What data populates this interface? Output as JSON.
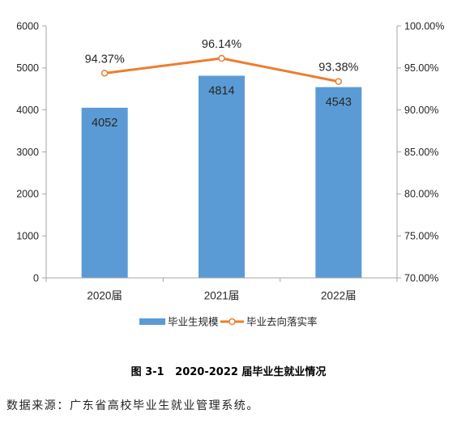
{
  "chart_data": {
    "type": "bar",
    "title": "图 3-1   2020-2022 届毕业生就业情况",
    "categories": [
      "2020届",
      "2021届",
      "2022届"
    ],
    "series": [
      {
        "name": "毕业生规模",
        "type": "bar",
        "axis": "left",
        "values": [
          4052,
          4814,
          4543
        ],
        "labels": [
          "4052",
          "4814",
          "4543"
        ],
        "color": "#5B9BD5"
      },
      {
        "name": "毕业去向落实率",
        "type": "line",
        "axis": "right",
        "values": [
          94.37,
          96.14,
          93.38
        ],
        "labels": [
          "94.37%",
          "96.14%",
          "93.38%"
        ],
        "color": "#ED7D31",
        "marker": "circle"
      }
    ],
    "y_axis_left": {
      "range": [
        0,
        6000
      ],
      "ticks": [
        0,
        1000,
        2000,
        3000,
        4000,
        5000,
        6000
      ],
      "tick_labels": [
        "0",
        "1000",
        "2000",
        "3000",
        "4000",
        "5000",
        "6000"
      ]
    },
    "y_axis_right": {
      "range": [
        70,
        100
      ],
      "ticks": [
        70,
        75,
        80,
        85,
        90,
        95,
        100
      ],
      "tick_labels": [
        "70.00%",
        "75.00%",
        "80.00%",
        "85.00%",
        "90.00%",
        "95.00%",
        "100.00%"
      ]
    },
    "grid": false,
    "legend": "bottom"
  },
  "source": "数据来源：广东省高校毕业生就业管理系统。",
  "colors": {
    "axis": "#A6A6A6",
    "text": "#262626",
    "marker_fill": "#FFFFFF"
  }
}
